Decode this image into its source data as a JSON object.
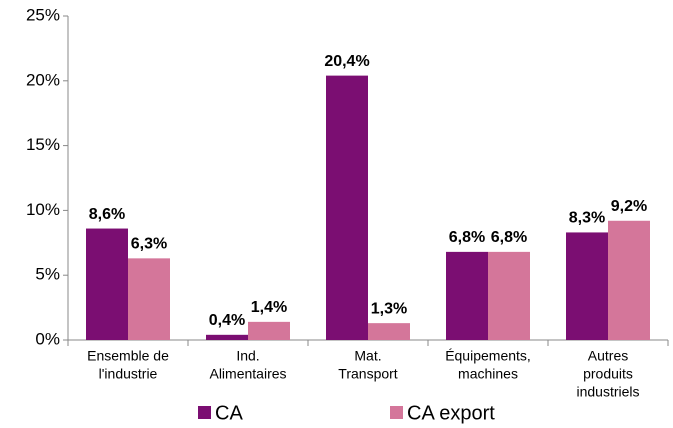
{
  "chart_data": {
    "type": "bar",
    "categories": [
      [
        "Ensemble de",
        "l'industrie"
      ],
      [
        "Ind.",
        "Alimentaires"
      ],
      [
        "Mat.",
        "Transport"
      ],
      [
        "Équipements,",
        "machines"
      ],
      [
        "Autres",
        "produits",
        "industriels"
      ]
    ],
    "series": [
      {
        "name": "CA",
        "color": "#7b0e72",
        "values": [
          8.6,
          0.4,
          20.4,
          6.8,
          8.3
        ],
        "value_labels": [
          "8,6%",
          "0,4%",
          "20,4%",
          "6,8%",
          "8,3%"
        ]
      },
      {
        "name": "CA export",
        "color": "#d4769a",
        "values": [
          6.3,
          1.4,
          1.3,
          6.8,
          9.2
        ],
        "value_labels": [
          "6,3%",
          "1,4%",
          "1,3%",
          "6,8%",
          "9,2%"
        ]
      }
    ],
    "ylim": [
      0,
      25
    ],
    "yticks": [
      {
        "value": 0,
        "label": "0%"
      },
      {
        "value": 5,
        "label": "5%"
      },
      {
        "value": 10,
        "label": "10%"
      },
      {
        "value": 15,
        "label": "15%"
      },
      {
        "value": 20,
        "label": "20%"
      },
      {
        "value": 25,
        "label": "25%"
      }
    ],
    "legend": "bottom"
  }
}
